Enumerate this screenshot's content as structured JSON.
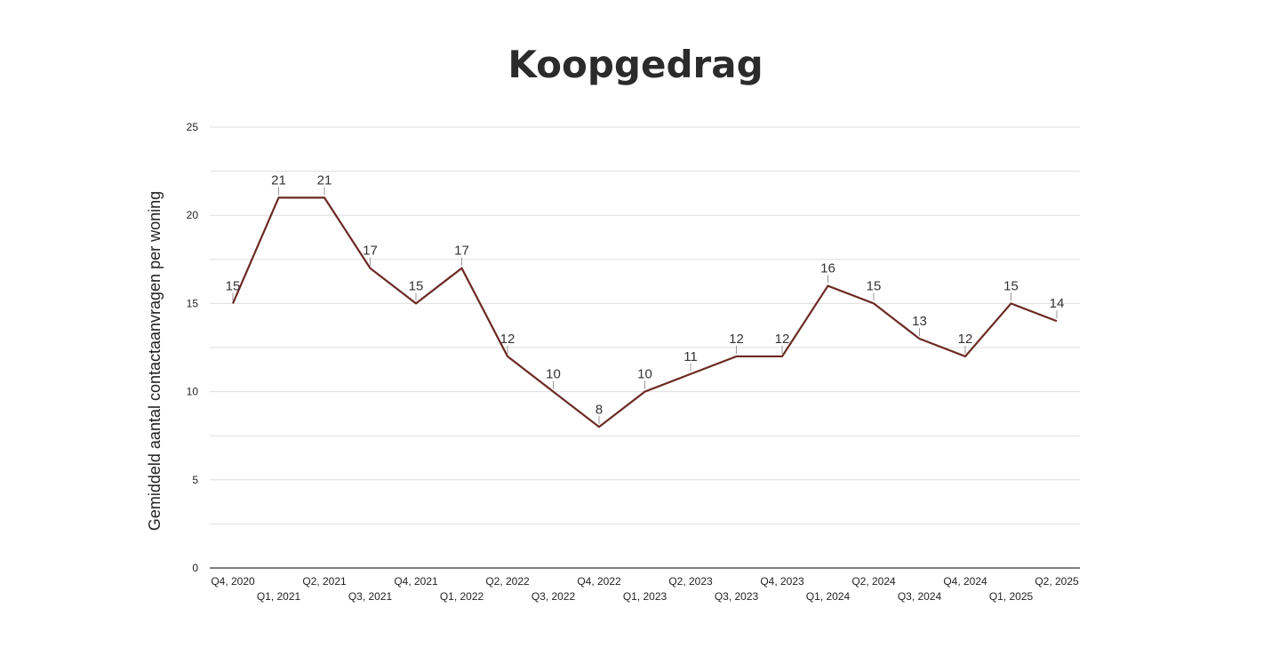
{
  "chart_data": {
    "type": "line",
    "title": "Koopgedrag",
    "xlabel": "",
    "ylabel": "Gemiddeld aantal contactaanvragen per woning",
    "ylim": [
      0,
      25
    ],
    "yticks": [
      0,
      5,
      10,
      15,
      20,
      25
    ],
    "grid": true,
    "categories": [
      "Q4, 2020",
      "Q1, 2021",
      "Q2, 2021",
      "Q3, 2021",
      "Q4, 2021",
      "Q1, 2022",
      "Q2, 2022",
      "Q3, 2022",
      "Q4, 2022",
      "Q1, 2023",
      "Q2, 2023",
      "Q3, 2023",
      "Q4, 2023",
      "Q1, 2024",
      "Q2, 2024",
      "Q3, 2024",
      "Q4, 2024",
      "Q1, 2025",
      "Q2, 2025"
    ],
    "series": [
      {
        "values": [
          15,
          21,
          21,
          17,
          15,
          17,
          12,
          10,
          8,
          10,
          11,
          12,
          12,
          16,
          15,
          13,
          12,
          15,
          14
        ]
      }
    ],
    "colors": {
      "line": "#6b2a24",
      "grid": "#dddddd",
      "axis": "#333333"
    }
  }
}
